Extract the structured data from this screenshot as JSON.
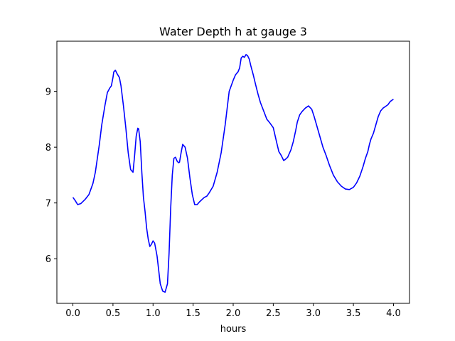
{
  "chart_data": {
    "type": "line",
    "title": "Water Depth h at gauge 3",
    "xlabel": "hours",
    "ylabel": "",
    "xlim": [
      -0.2,
      4.2
    ],
    "ylim": [
      5.2,
      9.9
    ],
    "xticks": [
      0.0,
      0.5,
      1.0,
      1.5,
      2.0,
      2.5,
      3.0,
      3.5,
      4.0
    ],
    "xtick_labels": [
      "0.0",
      "0.5",
      "1.0",
      "1.5",
      "2.0",
      "2.5",
      "3.0",
      "3.5",
      "4.0"
    ],
    "yticks": [
      6,
      7,
      8,
      9
    ],
    "ytick_labels": [
      "6",
      "7",
      "8",
      "9"
    ],
    "grid": false,
    "series": [
      {
        "color": "#0000ff",
        "x": [
          0.0,
          0.03,
          0.06,
          0.1,
          0.15,
          0.2,
          0.25,
          0.28,
          0.31,
          0.33,
          0.36,
          0.4,
          0.43,
          0.46,
          0.48,
          0.5,
          0.51,
          0.53,
          0.55,
          0.58,
          0.6,
          0.63,
          0.66,
          0.69,
          0.72,
          0.75,
          0.77,
          0.79,
          0.81,
          0.82,
          0.84,
          0.86,
          0.88,
          0.9,
          0.92,
          0.94,
          0.96,
          0.98,
          1.0,
          1.02,
          1.05,
          1.07,
          1.09,
          1.12,
          1.15,
          1.18,
          1.2,
          1.22,
          1.24,
          1.26,
          1.28,
          1.3,
          1.32,
          1.33,
          1.35,
          1.37,
          1.4,
          1.43,
          1.46,
          1.49,
          1.52,
          1.55,
          1.58,
          1.61,
          1.64,
          1.67,
          1.7,
          1.75,
          1.8,
          1.85,
          1.9,
          1.95,
          2.0,
          2.03,
          2.06,
          2.08,
          2.1,
          2.12,
          2.14,
          2.16,
          2.18,
          2.2,
          2.22,
          2.25,
          2.28,
          2.31,
          2.34,
          2.38,
          2.42,
          2.46,
          2.5,
          2.54,
          2.57,
          2.6,
          2.63,
          2.65,
          2.68,
          2.72,
          2.75,
          2.78,
          2.8,
          2.83,
          2.86,
          2.9,
          2.94,
          2.98,
          3.01,
          3.04,
          3.08,
          3.12,
          3.16,
          3.2,
          3.25,
          3.3,
          3.35,
          3.4,
          3.45,
          3.5,
          3.54,
          3.58,
          3.62,
          3.65,
          3.68,
          3.7,
          3.72,
          3.75,
          3.78,
          3.81,
          3.84,
          3.87,
          3.9,
          3.93,
          3.96,
          4.0
        ],
        "y": [
          7.1,
          7.04,
          6.97,
          6.99,
          7.06,
          7.15,
          7.35,
          7.55,
          7.85,
          8.05,
          8.4,
          8.75,
          8.98,
          9.06,
          9.1,
          9.25,
          9.35,
          9.38,
          9.32,
          9.25,
          9.1,
          8.75,
          8.35,
          7.9,
          7.6,
          7.55,
          7.85,
          8.2,
          8.34,
          8.33,
          8.1,
          7.55,
          7.1,
          6.85,
          6.55,
          6.35,
          6.22,
          6.26,
          6.32,
          6.28,
          6.05,
          5.8,
          5.55,
          5.42,
          5.4,
          5.55,
          6.1,
          6.9,
          7.5,
          7.8,
          7.82,
          7.75,
          7.72,
          7.73,
          7.9,
          8.05,
          8.0,
          7.8,
          7.45,
          7.15,
          6.97,
          6.97,
          7.02,
          7.06,
          7.1,
          7.12,
          7.18,
          7.3,
          7.55,
          7.9,
          8.4,
          9.0,
          9.2,
          9.3,
          9.35,
          9.42,
          9.6,
          9.63,
          9.61,
          9.66,
          9.64,
          9.58,
          9.46,
          9.3,
          9.12,
          8.95,
          8.8,
          8.65,
          8.5,
          8.43,
          8.35,
          8.1,
          7.92,
          7.85,
          7.76,
          7.78,
          7.82,
          7.95,
          8.1,
          8.3,
          8.45,
          8.58,
          8.64,
          8.7,
          8.74,
          8.68,
          8.55,
          8.4,
          8.2,
          8.0,
          7.85,
          7.68,
          7.5,
          7.38,
          7.3,
          7.25,
          7.24,
          7.28,
          7.36,
          7.48,
          7.65,
          7.8,
          7.92,
          8.05,
          8.15,
          8.25,
          8.4,
          8.55,
          8.65,
          8.7,
          8.73,
          8.76,
          8.82,
          8.86
        ]
      }
    ]
  }
}
